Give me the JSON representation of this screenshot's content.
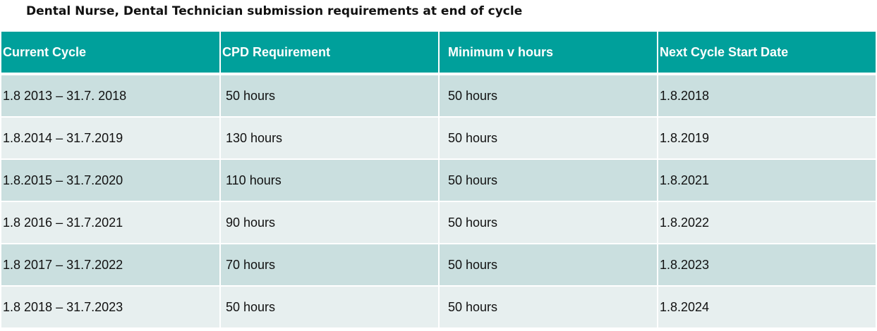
{
  "title": "Dental Nurse, Dental Technician submission requirements at end of cycle",
  "table": {
    "headers": [
      "Current Cycle",
      "CPD Requirement",
      "Minimum v hours",
      "Next Cycle Start Date"
    ],
    "rows": [
      [
        "1.8 2013 – 31.7. 2018",
        "50 hours",
        "50 hours",
        "1.8.2018"
      ],
      [
        "1.8.2014 – 31.7.2019",
        "130 hours",
        "50 hours",
        "1.8.2019"
      ],
      [
        "1.8.2015 – 31.7.2020",
        "110 hours",
        "50 hours",
        "1.8.2021"
      ],
      [
        "1.8 2016 – 31.7.2021",
        "90 hours",
        "50 hours",
        "1.8.2022"
      ],
      [
        "1.8 2017 – 31.7.2022",
        "70 hours",
        "50 hours",
        "1.8.2023"
      ],
      [
        "1.8 2018 – 31.7.2023",
        "50 hours",
        "50 hours",
        "1.8.2024"
      ]
    ]
  },
  "colors": {
    "header_bg": "#00a09b",
    "row_dark": "#cadfdf",
    "row_light": "#e7efef"
  }
}
